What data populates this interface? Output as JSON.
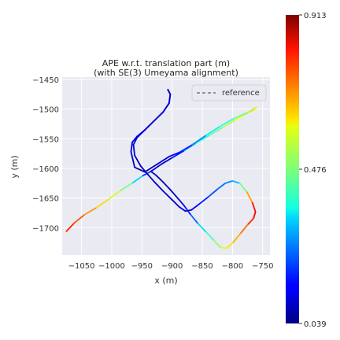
{
  "chart_data": {
    "type": "line",
    "title_line1": "APE w.r.t. translation part (m)",
    "title_line2": "(with SE(3) Umeyama alignment)",
    "xlabel": "x (m)",
    "ylabel": "y (m)",
    "xlim": [
      -1082,
      -738
    ],
    "ylim": [
      -1746,
      -1446
    ],
    "xticks": [
      -1050,
      -1000,
      -950,
      -900,
      -850,
      -800,
      -750
    ],
    "xtick_labels": [
      "−1050",
      "−1000",
      "−950",
      "−900",
      "−850",
      "−800",
      "−750"
    ],
    "yticks": [
      -1450,
      -1500,
      -1550,
      -1600,
      -1650,
      -1700
    ],
    "ytick_labels": [
      "−1450",
      "−1500",
      "−1550",
      "−1600",
      "−1650",
      "−1700"
    ],
    "grid": true,
    "legend": {
      "entries": [
        "reference"
      ],
      "placement": "top-right"
    },
    "colorbar": {
      "colormap": "jet",
      "min": 0.039,
      "max": 0.913,
      "mid": 0.476,
      "tick_labels": [
        "0.913",
        "0.476",
        "0.039"
      ]
    },
    "series": [
      {
        "name": "reference",
        "points": [
          [
            -1075,
            -1706,
            0.85
          ],
          [
            -1062,
            -1692,
            0.83
          ],
          [
            -1045,
            -1678,
            0.75
          ],
          [
            -1025,
            -1666,
            0.7
          ],
          [
            -1005,
            -1652,
            0.62
          ],
          [
            -985,
            -1637,
            0.55
          ],
          [
            -965,
            -1624,
            0.42
          ],
          [
            -948,
            -1612,
            0.25
          ],
          [
            -935,
            -1605,
            0.12
          ],
          [
            -918,
            -1593,
            0.08
          ],
          [
            -900,
            -1582,
            0.09
          ],
          [
            -880,
            -1570,
            0.22
          ],
          [
            -860,
            -1557,
            0.38
          ],
          [
            -838,
            -1544,
            0.45
          ],
          [
            -815,
            -1530,
            0.52
          ],
          [
            -795,
            -1518,
            0.58
          ],
          [
            -778,
            -1508,
            0.66
          ],
          [
            -765,
            -1500,
            0.72
          ],
          [
            -760,
            -1497,
            0.68
          ],
          [
            -766,
            -1502,
            0.58
          ],
          [
            -778,
            -1507,
            0.5
          ],
          [
            -800,
            -1517,
            0.44
          ],
          [
            -822,
            -1530,
            0.4
          ],
          [
            -845,
            -1545,
            0.32
          ],
          [
            -868,
            -1561,
            0.2
          ],
          [
            -888,
            -1573,
            0.12
          ],
          [
            -905,
            -1580,
            0.08
          ],
          [
            -925,
            -1593,
            0.06
          ],
          [
            -945,
            -1606,
            0.05
          ],
          [
            -962,
            -1598,
            0.06
          ],
          [
            -968,
            -1572,
            0.07
          ],
          [
            -966,
            -1556,
            0.08
          ],
          [
            -958,
            -1546,
            0.09
          ],
          [
            -945,
            -1535,
            0.1
          ],
          [
            -930,
            -1520,
            0.1
          ],
          [
            -915,
            -1505,
            0.1
          ],
          [
            -905,
            -1490,
            0.09
          ],
          [
            -903,
            -1475,
            0.08
          ],
          [
            -907,
            -1467,
            0.07
          ],
          [
            -903,
            -1475,
            0.08
          ],
          [
            -905,
            -1490,
            0.08
          ],
          [
            -915,
            -1505,
            0.08
          ],
          [
            -930,
            -1520,
            0.08
          ],
          [
            -945,
            -1535,
            0.08
          ],
          [
            -958,
            -1548,
            0.08
          ],
          [
            -964,
            -1560,
            0.08
          ],
          [
            -962,
            -1578,
            0.07
          ],
          [
            -952,
            -1596,
            0.06
          ],
          [
            -942,
            -1608,
            0.06
          ],
          [
            -930,
            -1622,
            0.06
          ],
          [
            -915,
            -1638,
            0.06
          ],
          [
            -900,
            -1653,
            0.07
          ],
          [
            -888,
            -1665,
            0.08
          ],
          [
            -878,
            -1672,
            0.09
          ],
          [
            -868,
            -1670,
            0.1
          ],
          [
            -855,
            -1660,
            0.13
          ],
          [
            -840,
            -1648,
            0.17
          ],
          [
            -825,
            -1635,
            0.22
          ],
          [
            -812,
            -1625,
            0.25
          ],
          [
            -800,
            -1621,
            0.27
          ],
          [
            -788,
            -1625,
            0.35
          ],
          [
            -776,
            -1640,
            0.62
          ],
          [
            -767,
            -1658,
            0.82
          ],
          [
            -762,
            -1673,
            0.9
          ],
          [
            -765,
            -1684,
            0.88
          ],
          [
            -775,
            -1695,
            0.8
          ],
          [
            -787,
            -1710,
            0.73
          ],
          [
            -800,
            -1726,
            0.67
          ],
          [
            -810,
            -1735,
            0.63
          ],
          [
            -820,
            -1733,
            0.56
          ],
          [
            -832,
            -1720,
            0.48
          ],
          [
            -845,
            -1706,
            0.4
          ],
          [
            -858,
            -1692,
            0.28
          ],
          [
            -870,
            -1677,
            0.17
          ],
          [
            -880,
            -1663,
            0.12
          ],
          [
            -890,
            -1651,
            0.09
          ],
          [
            -902,
            -1637,
            0.07
          ],
          [
            -914,
            -1624,
            0.06
          ],
          [
            -926,
            -1612,
            0.05
          ],
          [
            -935,
            -1605,
            0.05
          ]
        ]
      }
    ]
  }
}
